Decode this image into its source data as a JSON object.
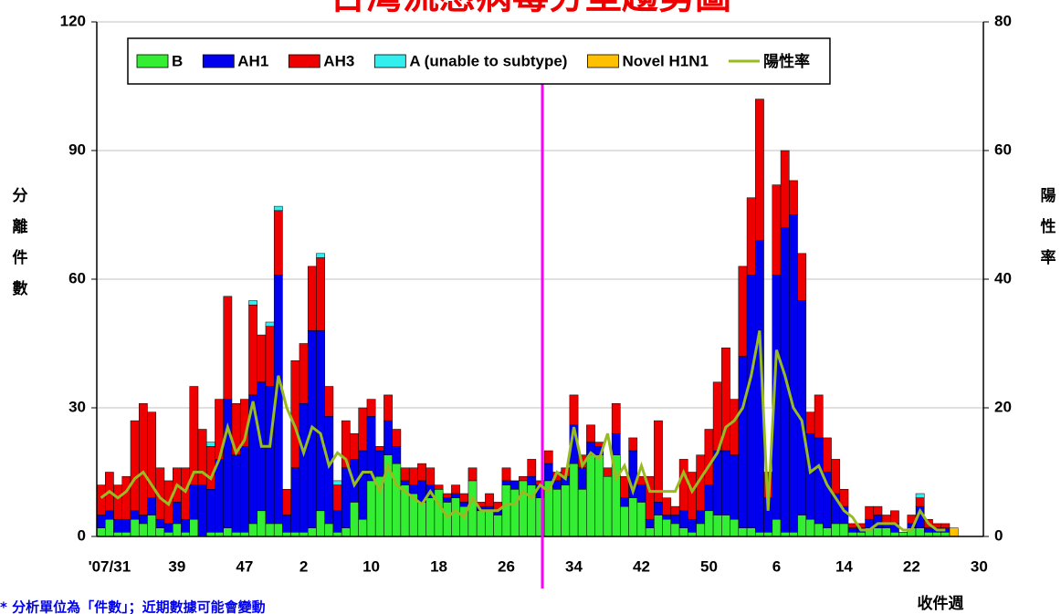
{
  "chart_data": {
    "type": "bar",
    "stacked": true,
    "title": "台灣流感病毒分型趨勢圖",
    "ylabel": "分離件數",
    "y2label": "陽性率",
    "xlabel": "收件週",
    "note": "* 分析單位為「件數」；近期數據可能會變動",
    "categories": [
      null,
      "'07/31",
      null,
      null,
      null,
      null,
      null,
      null,
      null,
      "39",
      null,
      null,
      null,
      null,
      null,
      null,
      null,
      "47",
      null,
      null,
      null,
      null,
      null,
      null,
      "2",
      null,
      null,
      null,
      null,
      null,
      null,
      null,
      "10",
      null,
      null,
      null,
      null,
      null,
      null,
      null,
      "18",
      null,
      null,
      null,
      null,
      null,
      null,
      null,
      "26",
      null,
      null,
      null,
      null,
      null,
      null,
      null,
      "34",
      null,
      null,
      null,
      null,
      null,
      null,
      null,
      "42",
      null,
      null,
      null,
      null,
      null,
      null,
      null,
      "50",
      null,
      null,
      null,
      null,
      null,
      null,
      null,
      "6",
      null,
      null,
      null,
      null,
      null,
      null,
      null,
      "14",
      null,
      null,
      null,
      null,
      null,
      null,
      null,
      "22",
      null,
      null,
      null,
      null,
      null,
      null,
      null,
      "30"
    ],
    "series": [
      {
        "name": "B",
        "color": "#33ee33",
        "values": [
          2,
          4,
          1,
          1,
          4,
          3,
          5,
          2,
          1,
          3,
          1,
          4,
          0,
          1,
          1,
          2,
          1,
          1,
          3,
          6,
          3,
          3,
          1,
          1,
          1,
          2,
          6,
          3,
          1,
          2,
          8,
          4,
          13,
          14,
          19,
          17,
          12,
          10,
          8,
          9,
          11,
          8,
          9,
          7,
          13,
          6,
          6,
          5,
          12,
          11,
          13,
          12,
          9,
          13,
          11,
          12,
          17,
          11,
          19,
          19,
          14,
          19,
          7,
          9,
          8,
          2,
          5,
          4,
          3,
          2,
          1,
          3,
          6,
          5,
          5,
          4,
          2,
          2,
          1,
          1,
          4,
          1,
          1,
          5,
          4,
          3,
          2,
          3,
          3,
          1,
          1,
          2,
          2,
          2,
          1,
          1,
          2,
          2,
          1,
          1,
          1,
          0,
          null,
          null,
          null
        ]
      },
      {
        "name": "AH1",
        "color": "#0000ee",
        "values": [
          3,
          2,
          3,
          3,
          2,
          2,
          4,
          2,
          2,
          5,
          3,
          8,
          12,
          10,
          17,
          30,
          18,
          20,
          30,
          30,
          32,
          58,
          4,
          15,
          30,
          46,
          42,
          25,
          5,
          14,
          10,
          16,
          15,
          6,
          8,
          4,
          1,
          2,
          5,
          3,
          0,
          1,
          1,
          1,
          0,
          1,
          1,
          1,
          1,
          2,
          0,
          2,
          3,
          4,
          2,
          2,
          9,
          5,
          3,
          2,
          0,
          5,
          2,
          11,
          4,
          2,
          3,
          1,
          2,
          4,
          3,
          3,
          6,
          15,
          15,
          15,
          40,
          59,
          68,
          8,
          57,
          71,
          74,
          50,
          20,
          20,
          13,
          7,
          4,
          1,
          1,
          2,
          3,
          1,
          2,
          0,
          1,
          5,
          1,
          1,
          1,
          0,
          null,
          null,
          null
        ]
      },
      {
        "name": "AH3",
        "color": "#ee0000",
        "values": [
          7,
          9,
          8,
          10,
          21,
          26,
          20,
          12,
          10,
          8,
          12,
          23,
          13,
          10,
          14,
          24,
          12,
          11,
          21,
          11,
          14,
          15,
          6,
          25,
          14,
          15,
          17,
          7,
          6,
          11,
          6,
          10,
          4,
          1,
          6,
          4,
          3,
          4,
          4,
          4,
          1,
          1,
          2,
          2,
          3,
          1,
          3,
          2,
          3,
          0,
          1,
          4,
          1,
          3,
          2,
          2,
          7,
          3,
          4,
          1,
          2,
          7,
          5,
          3,
          2,
          10,
          19,
          4,
          2,
          12,
          11,
          13,
          13,
          16,
          24,
          13,
          21,
          18,
          33,
          6,
          21,
          18,
          8,
          11,
          5,
          10,
          8,
          8,
          4,
          1,
          1,
          3,
          2,
          2,
          3,
          0,
          2,
          2,
          2,
          1,
          1,
          0,
          null,
          null,
          null
        ]
      },
      {
        "name": "A (unable to subtype)",
        "color": "#33eeee",
        "values": [
          0,
          0,
          0,
          0,
          0,
          0,
          0,
          0,
          0,
          0,
          0,
          0,
          0,
          1,
          0,
          0,
          0,
          0,
          1,
          0,
          1,
          1,
          0,
          0,
          0,
          0,
          1,
          0,
          1,
          0,
          0,
          0,
          0,
          0,
          0,
          0,
          0,
          0,
          0,
          0,
          0,
          0,
          0,
          0,
          0,
          0,
          0,
          0,
          0,
          0,
          0,
          0,
          0,
          0,
          0,
          0,
          0,
          0,
          0,
          0,
          0,
          0,
          0,
          0,
          0,
          0,
          0,
          0,
          0,
          0,
          0,
          0,
          0,
          0,
          0,
          0,
          0,
          0,
          0,
          0,
          0,
          0,
          0,
          0,
          0,
          0,
          0,
          0,
          0,
          0,
          0,
          0,
          0,
          0,
          0,
          0,
          0,
          1,
          0,
          0,
          0,
          0,
          null,
          null,
          null
        ]
      },
      {
        "name": "Novel H1N1",
        "color": "#ffc000",
        "values": [
          0,
          0,
          0,
          0,
          0,
          0,
          0,
          0,
          0,
          0,
          0,
          0,
          0,
          0,
          0,
          0,
          0,
          0,
          0,
          0,
          0,
          0,
          0,
          0,
          0,
          0,
          0,
          0,
          0,
          0,
          0,
          0,
          0,
          0,
          0,
          0,
          0,
          0,
          0,
          0,
          0,
          0,
          0,
          0,
          0,
          0,
          0,
          0,
          0,
          0,
          0,
          0,
          0,
          0,
          0,
          0,
          0,
          0,
          0,
          0,
          0,
          0,
          0,
          0,
          0,
          0,
          0,
          0,
          0,
          0,
          0,
          0,
          0,
          0,
          0,
          0,
          0,
          0,
          0,
          0,
          0,
          0,
          0,
          0,
          0,
          0,
          0,
          0,
          0,
          0,
          0,
          0,
          0,
          0,
          0,
          0,
          0,
          0,
          0,
          0,
          0,
          2,
          null,
          null,
          null
        ]
      },
      {
        "name": "陽性率",
        "type": "line",
        "axis": "y2",
        "color": "#99bb22",
        "values": [
          6,
          7,
          6,
          7,
          9,
          10,
          8,
          6,
          5,
          8,
          7,
          10,
          10,
          9,
          12,
          17,
          13,
          15,
          21,
          14,
          14,
          25,
          20,
          17,
          13,
          17,
          16,
          11,
          13,
          12,
          8,
          10,
          10,
          7,
          11,
          8,
          7,
          6,
          5,
          7,
          5,
          3,
          4,
          3,
          6,
          4,
          4,
          4,
          5,
          5,
          7,
          6,
          8,
          7,
          10,
          9,
          17,
          11,
          13,
          12,
          16,
          9,
          11,
          7,
          11,
          7,
          7,
          7,
          7,
          10,
          7,
          9,
          11,
          13,
          17,
          18,
          20,
          25,
          32,
          4,
          29,
          25,
          20,
          18,
          10,
          11,
          8,
          6,
          4,
          3,
          1,
          1,
          2,
          2,
          2,
          1,
          1,
          4,
          2,
          1,
          1,
          null,
          null,
          null,
          null
        ]
      }
    ],
    "ylim": [
      0,
      120
    ],
    "yticks": [
      0,
      30,
      60,
      90,
      120
    ],
    "y2lim": [
      0,
      80
    ],
    "y2ticks": [
      0,
      20,
      40,
      60,
      80
    ],
    "grid": true,
    "legend": "top"
  }
}
